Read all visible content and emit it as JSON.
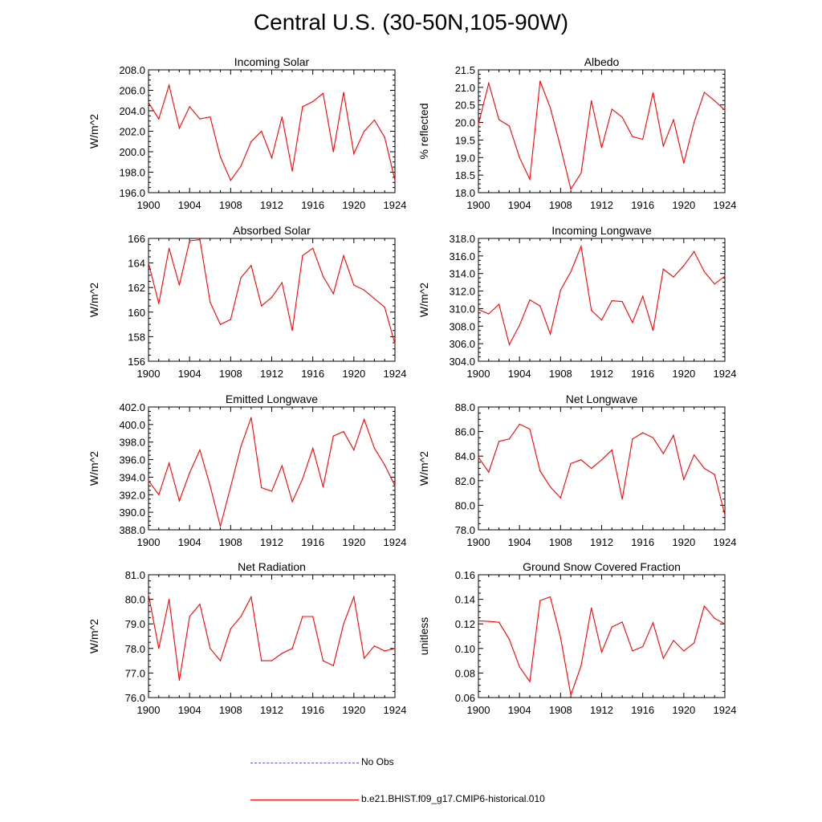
{
  "page": {
    "title": "Central U.S. (30-50N,105-90W)",
    "line_color": "#ff0000",
    "obs_color": "#5a5ad8"
  },
  "legend": {
    "obs_label": "No Obs",
    "model_label": "b.e21.BHIST.f09_g17.CMIP6-historical.010"
  },
  "chart_data": [
    {
      "type": "line",
      "title": "Incoming Solar",
      "ylabel": "W/m^2",
      "xlim": [
        1900,
        1924
      ],
      "ylim": [
        196,
        208
      ],
      "xticks": [
        1900,
        1904,
        1908,
        1912,
        1916,
        1920,
        1924
      ],
      "yticks": [
        196,
        198,
        200,
        202,
        204,
        206,
        208
      ],
      "ytick_decimals": 1,
      "x": [
        1900,
        1901,
        1902,
        1903,
        1904,
        1905,
        1906,
        1907,
        1908,
        1909,
        1910,
        1911,
        1912,
        1913,
        1914,
        1915,
        1916,
        1917,
        1918,
        1919,
        1920,
        1921,
        1922,
        1923,
        1924
      ],
      "series": [
        {
          "values": [
            204.8,
            203.2,
            206.5,
            202.3,
            204.4,
            203.2,
            203.4,
            199.5,
            197.2,
            198.6,
            201.0,
            202.0,
            199.4,
            203.4,
            198.1,
            204.4,
            204.9,
            205.7,
            200.0,
            205.8,
            199.8,
            202.0,
            203.1,
            201.4,
            197.2
          ]
        }
      ]
    },
    {
      "type": "line",
      "title": "Albedo",
      "ylabel": "% reflected",
      "xlim": [
        1900,
        1924
      ],
      "ylim": [
        18,
        21.5
      ],
      "xticks": [
        1900,
        1904,
        1908,
        1912,
        1916,
        1920,
        1924
      ],
      "yticks": [
        18.0,
        18.5,
        19.0,
        19.5,
        20.0,
        20.5,
        21.0,
        21.5
      ],
      "ytick_decimals": 1,
      "x": [
        1900,
        1901,
        1902,
        1903,
        1904,
        1905,
        1906,
        1907,
        1908,
        1909,
        1910,
        1911,
        1912,
        1913,
        1914,
        1915,
        1916,
        1917,
        1918,
        1919,
        1920,
        1921,
        1922,
        1923,
        1924
      ],
      "series": [
        {
          "values": [
            19.95,
            21.12,
            20.08,
            19.9,
            19.0,
            18.38,
            21.18,
            20.42,
            19.3,
            18.1,
            18.56,
            20.62,
            19.28,
            20.38,
            20.15,
            19.6,
            19.52,
            20.85,
            19.33,
            20.08,
            18.84,
            20.0,
            20.86,
            20.62,
            20.35
          ]
        }
      ]
    },
    {
      "type": "line",
      "title": "Absorbed Solar",
      "ylabel": "W/m^2",
      "xlim": [
        1900,
        1924
      ],
      "ylim": [
        156,
        166
      ],
      "xticks": [
        1900,
        1904,
        1908,
        1912,
        1916,
        1920,
        1924
      ],
      "yticks": [
        156,
        158,
        160,
        162,
        164,
        166
      ],
      "ytick_decimals": 0,
      "x": [
        1900,
        1901,
        1902,
        1903,
        1904,
        1905,
        1906,
        1907,
        1908,
        1909,
        1910,
        1911,
        1912,
        1913,
        1914,
        1915,
        1916,
        1917,
        1918,
        1919,
        1920,
        1921,
        1922,
        1923,
        1924
      ],
      "series": [
        {
          "values": [
            164.0,
            160.7,
            165.2,
            162.2,
            165.8,
            165.9,
            160.8,
            159.0,
            159.4,
            162.8,
            163.8,
            160.5,
            161.2,
            162.4,
            158.5,
            164.6,
            165.2,
            162.9,
            161.5,
            164.6,
            162.2,
            161.8,
            161.1,
            160.4,
            157.4
          ]
        }
      ]
    },
    {
      "type": "line",
      "title": "Incoming Longwave",
      "ylabel": "W/m^2",
      "xlim": [
        1900,
        1924
      ],
      "ylim": [
        304,
        318
      ],
      "xticks": [
        1900,
        1904,
        1908,
        1912,
        1916,
        1920,
        1924
      ],
      "yticks": [
        304,
        306,
        308,
        310,
        312,
        314,
        316,
        318
      ],
      "ytick_decimals": 1,
      "x": [
        1900,
        1901,
        1902,
        1903,
        1904,
        1905,
        1906,
        1907,
        1908,
        1909,
        1910,
        1911,
        1912,
        1913,
        1914,
        1915,
        1916,
        1917,
        1918,
        1919,
        1920,
        1921,
        1922,
        1923,
        1924
      ],
      "series": [
        {
          "values": [
            309.9,
            309.4,
            310.5,
            305.9,
            308.1,
            311.0,
            310.3,
            307.1,
            312.1,
            314.2,
            317.1,
            309.8,
            308.7,
            310.9,
            310.8,
            308.4,
            311.4,
            307.5,
            314.5,
            313.6,
            314.9,
            316.5,
            314.2,
            312.8,
            313.7
          ]
        }
      ]
    },
    {
      "type": "line",
      "title": "Emitted Longwave",
      "ylabel": "W/m^2",
      "xlim": [
        1900,
        1924
      ],
      "ylim": [
        388,
        402
      ],
      "xticks": [
        1900,
        1904,
        1908,
        1912,
        1916,
        1920,
        1924
      ],
      "yticks": [
        388,
        390,
        392,
        394,
        396,
        398,
        400,
        402
      ],
      "ytick_decimals": 1,
      "x": [
        1900,
        1901,
        1902,
        1903,
        1904,
        1905,
        1906,
        1907,
        1908,
        1909,
        1910,
        1911,
        1912,
        1913,
        1914,
        1915,
        1916,
        1917,
        1918,
        1919,
        1920,
        1921,
        1922,
        1923,
        1924
      ],
      "series": [
        {
          "values": [
            393.6,
            392.0,
            395.6,
            391.3,
            394.5,
            397.1,
            393.0,
            388.4,
            392.9,
            397.5,
            400.8,
            392.8,
            392.4,
            395.3,
            391.2,
            393.8,
            397.3,
            392.9,
            398.7,
            399.2,
            397.1,
            400.6,
            397.3,
            395.4,
            393.0
          ]
        }
      ]
    },
    {
      "type": "line",
      "title": "Net Longwave",
      "ylabel": "W/m^2",
      "xlim": [
        1900,
        1924
      ],
      "ylim": [
        78,
        88
      ],
      "xticks": [
        1900,
        1904,
        1908,
        1912,
        1916,
        1920,
        1924
      ],
      "yticks": [
        78,
        80,
        82,
        84,
        86,
        88
      ],
      "ytick_decimals": 1,
      "x": [
        1900,
        1901,
        1902,
        1903,
        1904,
        1905,
        1906,
        1907,
        1908,
        1909,
        1910,
        1911,
        1912,
        1913,
        1914,
        1915,
        1916,
        1917,
        1918,
        1919,
        1920,
        1921,
        1922,
        1923,
        1924
      ],
      "series": [
        {
          "values": [
            83.9,
            82.7,
            85.2,
            85.4,
            86.6,
            86.2,
            82.8,
            81.5,
            80.6,
            83.4,
            83.7,
            83.0,
            83.7,
            84.5,
            80.5,
            85.4,
            85.9,
            85.5,
            84.2,
            85.7,
            82.1,
            84.1,
            83.0,
            82.5,
            79.2
          ]
        }
      ]
    },
    {
      "type": "line",
      "title": "Net Radiation",
      "ylabel": "W/m^2",
      "xlim": [
        1900,
        1924
      ],
      "ylim": [
        76,
        81
      ],
      "xticks": [
        1900,
        1904,
        1908,
        1912,
        1916,
        1920,
        1924
      ],
      "yticks": [
        76,
        77,
        78,
        79,
        80,
        81
      ],
      "ytick_decimals": 1,
      "x": [
        1900,
        1901,
        1902,
        1903,
        1904,
        1905,
        1906,
        1907,
        1908,
        1909,
        1910,
        1911,
        1912,
        1913,
        1914,
        1915,
        1916,
        1917,
        1918,
        1919,
        1920,
        1921,
        1922,
        1923,
        1924
      ],
      "series": [
        {
          "values": [
            80.2,
            78.0,
            80.0,
            76.7,
            79.3,
            79.8,
            78.0,
            77.5,
            78.8,
            79.3,
            80.1,
            77.5,
            77.5,
            77.8,
            78.0,
            79.3,
            79.3,
            77.5,
            77.3,
            79.0,
            80.1,
            77.6,
            78.1,
            77.9,
            78.0
          ]
        }
      ]
    },
    {
      "type": "line",
      "title": "Ground Snow Covered Fraction",
      "ylabel": "unitless",
      "xlim": [
        1900,
        1924
      ],
      "ylim": [
        0.06,
        0.16
      ],
      "xticks": [
        1900,
        1904,
        1908,
        1912,
        1916,
        1920,
        1924
      ],
      "yticks": [
        0.06,
        0.08,
        0.1,
        0.12,
        0.14,
        0.16
      ],
      "ytick_decimals": 2,
      "x": [
        1900,
        1901,
        1902,
        1903,
        1904,
        1905,
        1906,
        1907,
        1908,
        1909,
        1910,
        1911,
        1912,
        1913,
        1914,
        1915,
        1916,
        1917,
        1918,
        1919,
        1920,
        1921,
        1922,
        1923,
        1924
      ],
      "series": [
        {
          "values": [
            0.1225,
            0.122,
            0.1213,
            0.1075,
            0.085,
            0.073,
            0.139,
            0.142,
            0.109,
            0.062,
            0.086,
            0.133,
            0.097,
            0.1175,
            0.1215,
            0.098,
            0.1015,
            0.121,
            0.092,
            0.1065,
            0.098,
            0.1045,
            0.1345,
            0.1245,
            0.12
          ]
        }
      ]
    }
  ]
}
